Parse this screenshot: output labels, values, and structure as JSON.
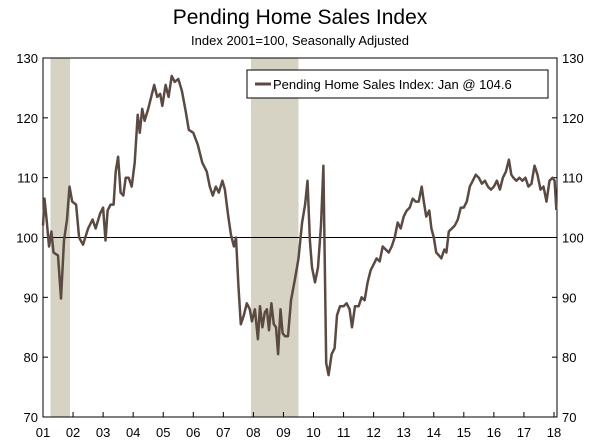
{
  "chart_data": {
    "type": "line",
    "title": "Pending Home Sales Index",
    "subtitle": "Index 2001=100, Seasonally Adjusted",
    "xlabel": "",
    "ylabel": "",
    "ylim": [
      70,
      130
    ],
    "y_ticks": [
      70,
      80,
      90,
      100,
      110,
      120,
      130
    ],
    "x_tick_labels": [
      "01",
      "02",
      "03",
      "04",
      "05",
      "06",
      "07",
      "08",
      "09",
      "10",
      "11",
      "12",
      "13",
      "14",
      "15",
      "16",
      "17",
      "18"
    ],
    "x_range_years": [
      2001,
      2018.1
    ],
    "reference_line": 100,
    "recessions": [
      [
        2001.25,
        2001.9
      ],
      [
        2007.92,
        2009.5
      ]
    ],
    "legend": {
      "label": "Pending Home Sales Index: Jan @ 104.6",
      "position": "top-right"
    },
    "series": [
      {
        "name": "Pending Home Sales Index: Jan @ 104.6",
        "color": "#5b4a42",
        "points": [
          [
            2001.0,
            102.0
          ],
          [
            2001.05,
            106.5
          ],
          [
            2001.12,
            103.0
          ],
          [
            2001.2,
            98.5
          ],
          [
            2001.28,
            101.0
          ],
          [
            2001.35,
            97.5
          ],
          [
            2001.5,
            97.0
          ],
          [
            2001.6,
            89.8
          ],
          [
            2001.7,
            99.5
          ],
          [
            2001.8,
            103.0
          ],
          [
            2001.88,
            108.5
          ],
          [
            2001.97,
            106.0
          ],
          [
            2002.1,
            105.5
          ],
          [
            2002.2,
            100.0
          ],
          [
            2002.33,
            98.8
          ],
          [
            2002.5,
            101.5
          ],
          [
            2002.65,
            103.0
          ],
          [
            2002.75,
            101.5
          ],
          [
            2002.9,
            104.0
          ],
          [
            2003.0,
            105.0
          ],
          [
            2003.08,
            99.5
          ],
          [
            2003.15,
            104.5
          ],
          [
            2003.25,
            105.5
          ],
          [
            2003.35,
            105.5
          ],
          [
            2003.42,
            111.0
          ],
          [
            2003.5,
            113.5
          ],
          [
            2003.58,
            107.5
          ],
          [
            2003.67,
            107.0
          ],
          [
            2003.75,
            110.0
          ],
          [
            2003.85,
            110.0
          ],
          [
            2003.95,
            108.5
          ],
          [
            2004.05,
            112.5
          ],
          [
            2004.15,
            120.5
          ],
          [
            2004.22,
            117.5
          ],
          [
            2004.3,
            121.5
          ],
          [
            2004.38,
            119.5
          ],
          [
            2004.5,
            121.5
          ],
          [
            2004.6,
            123.5
          ],
          [
            2004.7,
            125.5
          ],
          [
            2004.8,
            123.5
          ],
          [
            2004.9,
            124.0
          ],
          [
            2004.97,
            122.0
          ],
          [
            2005.08,
            125.5
          ],
          [
            2005.18,
            123.5
          ],
          [
            2005.28,
            127.0
          ],
          [
            2005.38,
            126.0
          ],
          [
            2005.5,
            126.5
          ],
          [
            2005.62,
            124.5
          ],
          [
            2005.75,
            121.0
          ],
          [
            2005.85,
            118.0
          ],
          [
            2006.0,
            117.5
          ],
          [
            2006.15,
            115.5
          ],
          [
            2006.3,
            112.5
          ],
          [
            2006.45,
            111.0
          ],
          [
            2006.55,
            108.5
          ],
          [
            2006.65,
            107.0
          ],
          [
            2006.75,
            108.5
          ],
          [
            2006.85,
            107.5
          ],
          [
            2006.97,
            109.5
          ],
          [
            2007.05,
            108.0
          ],
          [
            2007.15,
            104.0
          ],
          [
            2007.25,
            100.5
          ],
          [
            2007.35,
            98.5
          ],
          [
            2007.42,
            100.0
          ],
          [
            2007.5,
            92.0
          ],
          [
            2007.58,
            85.5
          ],
          [
            2007.68,
            87.0
          ],
          [
            2007.78,
            89.0
          ],
          [
            2007.88,
            88.0
          ],
          [
            2007.95,
            86.0
          ],
          [
            2008.05,
            88.0
          ],
          [
            2008.15,
            83.0
          ],
          [
            2008.22,
            88.5
          ],
          [
            2008.3,
            85.0
          ],
          [
            2008.38,
            87.5
          ],
          [
            2008.45,
            88.0
          ],
          [
            2008.52,
            84.5
          ],
          [
            2008.6,
            89.0
          ],
          [
            2008.68,
            85.5
          ],
          [
            2008.75,
            85.0
          ],
          [
            2008.82,
            80.5
          ],
          [
            2008.9,
            88.0
          ],
          [
            2008.97,
            84.0
          ],
          [
            2009.05,
            83.5
          ],
          [
            2009.15,
            83.5
          ],
          [
            2009.25,
            89.5
          ],
          [
            2009.38,
            93.0
          ],
          [
            2009.5,
            96.5
          ],
          [
            2009.62,
            102.5
          ],
          [
            2009.72,
            105.5
          ],
          [
            2009.8,
            109.5
          ],
          [
            2009.88,
            99.5
          ],
          [
            2009.95,
            95.0
          ],
          [
            2010.05,
            92.5
          ],
          [
            2010.15,
            95.0
          ],
          [
            2010.25,
            102.0
          ],
          [
            2010.33,
            112.0
          ],
          [
            2010.42,
            79.0
          ],
          [
            2010.5,
            77.0
          ],
          [
            2010.6,
            80.5
          ],
          [
            2010.7,
            81.5
          ],
          [
            2010.78,
            87.0
          ],
          [
            2010.88,
            88.5
          ],
          [
            2011.0,
            88.5
          ],
          [
            2011.1,
            89.0
          ],
          [
            2011.2,
            88.0
          ],
          [
            2011.28,
            85.0
          ],
          [
            2011.38,
            88.5
          ],
          [
            2011.5,
            88.5
          ],
          [
            2011.6,
            90.0
          ],
          [
            2011.7,
            89.5
          ],
          [
            2011.8,
            92.5
          ],
          [
            2011.9,
            94.5
          ],
          [
            2012.0,
            95.5
          ],
          [
            2012.1,
            96.5
          ],
          [
            2012.2,
            96.0
          ],
          [
            2012.3,
            98.5
          ],
          [
            2012.4,
            98.0
          ],
          [
            2012.5,
            97.5
          ],
          [
            2012.6,
            98.5
          ],
          [
            2012.7,
            100.0
          ],
          [
            2012.8,
            102.5
          ],
          [
            2012.9,
            101.5
          ],
          [
            2013.0,
            103.5
          ],
          [
            2013.1,
            104.5
          ],
          [
            2013.2,
            105.0
          ],
          [
            2013.3,
            106.5
          ],
          [
            2013.4,
            106.0
          ],
          [
            2013.5,
            106.0
          ],
          [
            2013.6,
            108.5
          ],
          [
            2013.67,
            106.0
          ],
          [
            2013.75,
            103.5
          ],
          [
            2013.85,
            104.5
          ],
          [
            2013.92,
            101.5
          ],
          [
            2014.0,
            100.0
          ],
          [
            2014.08,
            97.5
          ],
          [
            2014.17,
            97.0
          ],
          [
            2014.25,
            96.5
          ],
          [
            2014.35,
            98.0
          ],
          [
            2014.42,
            97.5
          ],
          [
            2014.5,
            101.0
          ],
          [
            2014.6,
            101.5
          ],
          [
            2014.7,
            102.0
          ],
          [
            2014.8,
            103.0
          ],
          [
            2014.9,
            105.0
          ],
          [
            2015.0,
            105.0
          ],
          [
            2015.1,
            106.0
          ],
          [
            2015.2,
            108.5
          ],
          [
            2015.3,
            109.5
          ],
          [
            2015.4,
            110.5
          ],
          [
            2015.5,
            110.0
          ],
          [
            2015.6,
            109.0
          ],
          [
            2015.7,
            109.5
          ],
          [
            2015.8,
            108.5
          ],
          [
            2015.9,
            108.0
          ],
          [
            2016.0,
            108.5
          ],
          [
            2016.1,
            109.5
          ],
          [
            2016.2,
            108.0
          ],
          [
            2016.3,
            110.0
          ],
          [
            2016.4,
            111.0
          ],
          [
            2016.5,
            113.0
          ],
          [
            2016.58,
            110.5
          ],
          [
            2016.65,
            110.0
          ],
          [
            2016.75,
            109.5
          ],
          [
            2016.85,
            110.0
          ],
          [
            2016.95,
            109.5
          ],
          [
            2017.05,
            110.0
          ],
          [
            2017.15,
            108.5
          ],
          [
            2017.25,
            109.0
          ],
          [
            2017.35,
            112.0
          ],
          [
            2017.45,
            110.5
          ],
          [
            2017.55,
            108.0
          ],
          [
            2017.65,
            108.5
          ],
          [
            2017.75,
            106.0
          ],
          [
            2017.85,
            109.5
          ],
          [
            2017.95,
            110.0
          ],
          [
            2018.02,
            109.5
          ],
          [
            2018.08,
            104.6
          ]
        ]
      }
    ]
  }
}
